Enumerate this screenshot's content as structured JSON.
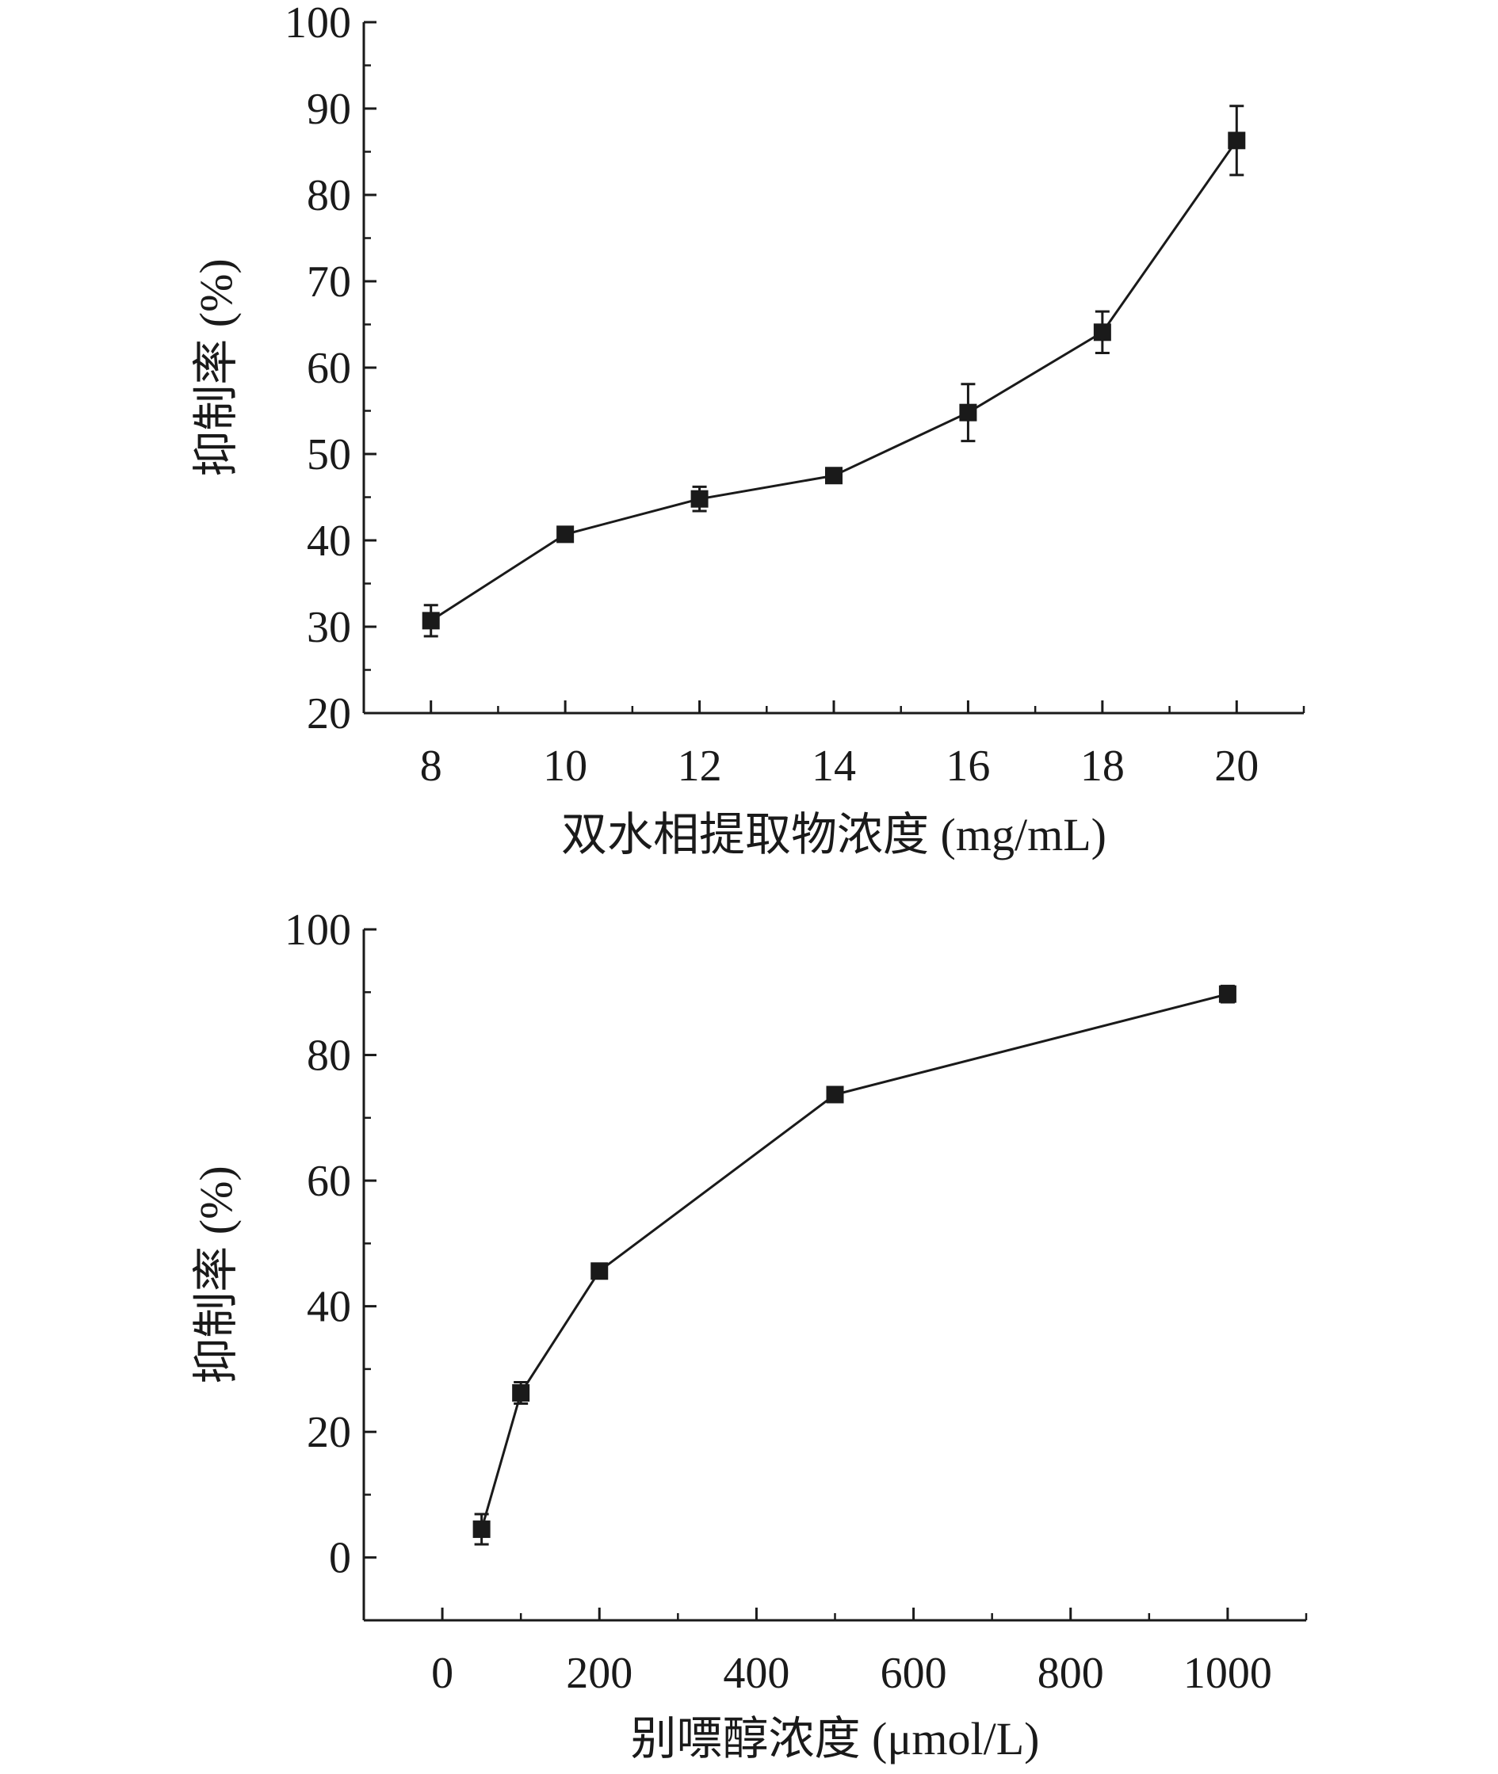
{
  "chart_data": [
    {
      "type": "line",
      "title": "",
      "xlabel": "双水相提取物浓度 (mg/mL)",
      "ylabel": "抑制率 (%)",
      "xlim": [
        7,
        21
      ],
      "ylim": [
        20,
        100
      ],
      "xticks": [
        8,
        10,
        12,
        14,
        16,
        18,
        20
      ],
      "yticks": [
        20,
        30,
        40,
        50,
        60,
        70,
        80,
        90,
        100
      ],
      "grid": false,
      "x": [
        8,
        10,
        12,
        14,
        16,
        18,
        20
      ],
      "y": [
        30.7,
        40.7,
        44.8,
        47.5,
        54.8,
        64.1,
        86.3
      ],
      "yerr": [
        1.8,
        0.5,
        1.4,
        0.5,
        3.3,
        2.4,
        4.0
      ],
      "marker": "square",
      "color": "#1a1a1a"
    },
    {
      "type": "line",
      "title": "",
      "xlabel": "别嘌醇浓度 (μmol/L)",
      "ylabel": "抑制率 (%)",
      "xlim": [
        -100,
        1100
      ],
      "ylim": [
        -10,
        100
      ],
      "xticks": [
        0,
        200,
        400,
        600,
        800,
        1000
      ],
      "yticks": [
        0,
        20,
        40,
        60,
        80,
        100
      ],
      "grid": false,
      "x": [
        50,
        100,
        200,
        500,
        1000
      ],
      "y": [
        4.5,
        26.2,
        45.6,
        73.7,
        89.7
      ],
      "yerr": [
        2.4,
        1.7,
        0.6,
        1.0,
        1.3
      ],
      "marker": "square",
      "color": "#1a1a1a"
    }
  ]
}
